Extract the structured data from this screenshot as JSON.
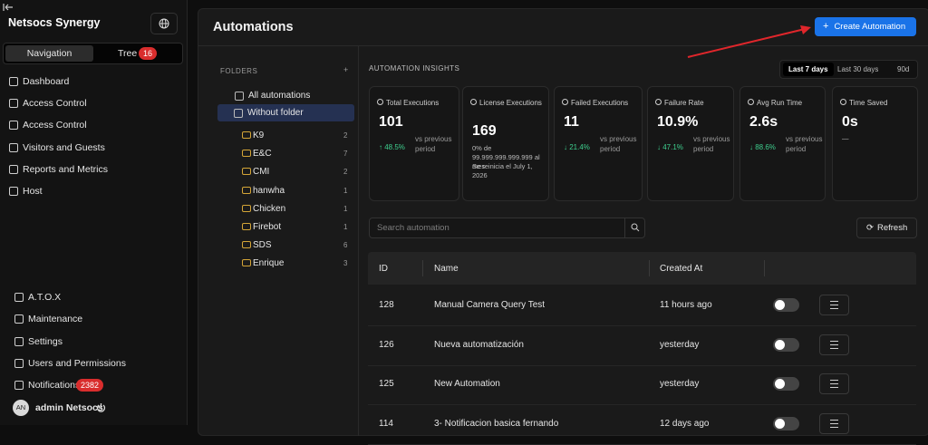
{
  "sidebar": {
    "brand": "Netsocs Synergy",
    "tabs": [
      {
        "label": "Navigation"
      },
      {
        "label": "Tree",
        "badge": 16
      }
    ],
    "nav": [
      "Dashboard",
      "Access Control",
      "Access Control",
      "Visitors and Guests",
      "Reports and Metrics",
      "Host"
    ],
    "bottom_nav": [
      {
        "label": "A.T.O.X"
      },
      {
        "label": "Maintenance"
      },
      {
        "label": "Settings"
      },
      {
        "label": "Users and Permissions"
      },
      {
        "label": "Notifications",
        "badge": 2382
      }
    ],
    "user": {
      "initials": "AN",
      "name": "admin Netsocs"
    }
  },
  "header": {
    "title": "Automations",
    "button": "Create Automation"
  },
  "folders": {
    "title": "FOLDERS",
    "all": "All automations",
    "without": "Without folder",
    "items": [
      {
        "name": "K9",
        "count": 2
      },
      {
        "name": "E&C",
        "count": 7
      },
      {
        "name": "CMI",
        "count": 2
      },
      {
        "name": "hanwha",
        "count": 1
      },
      {
        "name": "Chicken",
        "count": 1
      },
      {
        "name": "Firebot",
        "count": 1
      },
      {
        "name": "SDS",
        "count": 6
      },
      {
        "name": "Enrique",
        "count": 3
      }
    ]
  },
  "insights": {
    "title": "AUTOMATION INSIGHTS",
    "ranges": [
      "Last 7 days",
      "Last 30 days",
      "90d"
    ],
    "cards": [
      {
        "title": "Total Executions",
        "value": "101",
        "change": "↑ 48.5%",
        "note": "vs previous period"
      },
      {
        "title": "License Executions",
        "value": "169",
        "lines": [
          "0% de 99.999.999.999.999 al mes",
          "Se reinicia el July 1, 2026"
        ]
      },
      {
        "title": "Failed Executions",
        "value": "11",
        "change": "↓ 21.4%",
        "note": "vs previous period"
      },
      {
        "title": "Failure Rate",
        "value": "10.9%",
        "change": "↓ 47.1%",
        "note": "vs previous period"
      },
      {
        "title": "Avg Run Time",
        "value": "2.6s",
        "change": "↓ 88.6%",
        "note": "vs previous period"
      },
      {
        "title": "Time Saved",
        "value": "0s",
        "lines": [
          "—"
        ]
      }
    ]
  },
  "search": {
    "placeholder": "Search automation",
    "refresh": "Refresh"
  },
  "table": {
    "columns": [
      "ID",
      "Name",
      "Created At"
    ],
    "rows": [
      [
        128,
        "Manual Camera Query Test",
        "11 hours ago"
      ],
      [
        126,
        "Nueva automatización",
        "yesterday"
      ],
      [
        125,
        "New Automation",
        "yesterday"
      ],
      [
        114,
        "3- Notificacion basica fernando",
        "12 days ago"
      ]
    ]
  }
}
